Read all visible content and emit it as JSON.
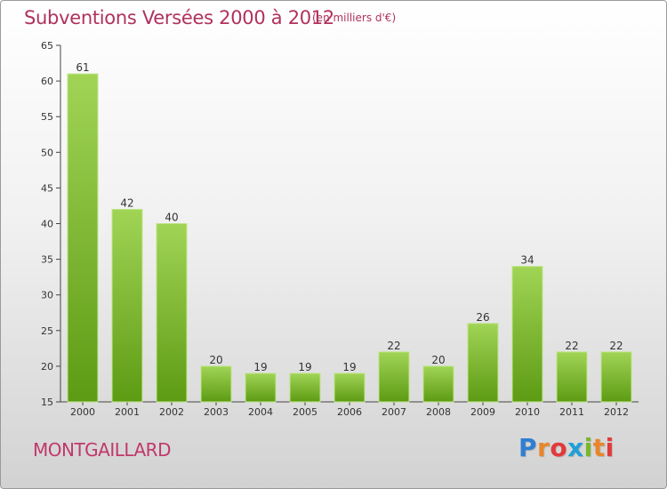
{
  "chart": {
    "title": "Subventions Versées 2000 à 2012",
    "subtitle": "(en milliers d'€)",
    "entity": "MONTGAILLARD"
  },
  "brand": {
    "name": "Proxiti",
    "letters": [
      "P",
      "r",
      "o",
      "x",
      "i",
      "t",
      "i"
    ],
    "letter_colors": [
      "#2f7fd1",
      "#e8862a",
      "#e23a3a",
      "#1f9fd6",
      "#78b82a",
      "#e8862a",
      "#e23a3a"
    ]
  },
  "colors": {
    "title": "#b0315e",
    "bar_top": "#a1d455",
    "bar_bottom": "#5d9b14",
    "axis": "#444444"
  },
  "chart_data": {
    "type": "bar",
    "categories": [
      "2000",
      "2001",
      "2002",
      "2003",
      "2004",
      "2005",
      "2006",
      "2007",
      "2008",
      "2009",
      "2010",
      "2011",
      "2012"
    ],
    "values": [
      61,
      42,
      40,
      20,
      19,
      19,
      19,
      22,
      20,
      26,
      34,
      22,
      22
    ],
    "title": "Subventions Versées 2000 à 2012",
    "subtitle": "(en milliers d'€)",
    "xlabel": "",
    "ylabel": "",
    "ylim": [
      15,
      65
    ],
    "yticks": [
      15,
      20,
      25,
      30,
      35,
      40,
      45,
      50,
      55,
      60,
      65
    ],
    "grid": false,
    "data_labels": true
  }
}
